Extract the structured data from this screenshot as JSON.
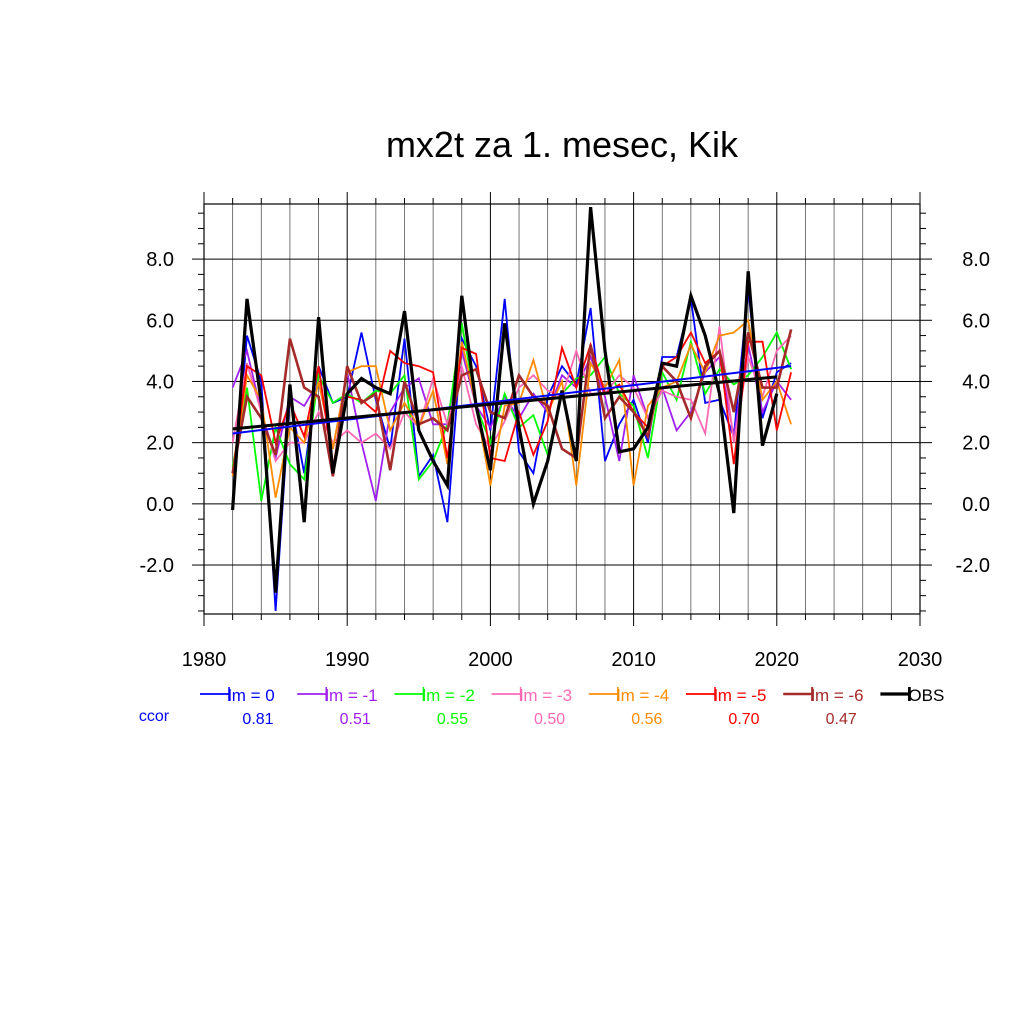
{
  "chart_data": {
    "type": "line",
    "title": "mx2t za 1. mesec, Kik",
    "xlabel": "",
    "ylabel": "",
    "xlim": [
      1980,
      2030
    ],
    "ylim": [
      -3.6,
      9.8
    ],
    "x_ticks": [
      "1980",
      "1990",
      "2000",
      "2010",
      "2020",
      "2030"
    ],
    "y_ticks": [
      "-2.0",
      "0.0",
      "2.0",
      "4.0",
      "6.0",
      "8.0"
    ],
    "y_tick_values": [
      -2,
      0,
      2,
      4,
      6,
      8
    ],
    "grid": true,
    "legend_position": "bottom",
    "ccor_label": "ccor",
    "x": [
      1982,
      1983,
      1984,
      1985,
      1986,
      1987,
      1988,
      1989,
      1990,
      1991,
      1992,
      1993,
      1994,
      1995,
      1996,
      1997,
      1998,
      1999,
      2000,
      2001,
      2002,
      2003,
      2004,
      2005,
      2006,
      2007,
      2008,
      2009,
      2010,
      2011,
      2012,
      2013,
      2014,
      2015,
      2016,
      2017,
      2018,
      2019,
      2020,
      2021
    ],
    "series": [
      {
        "name": "lm = 0",
        "color": "#0000ff",
        "ccor": "0.81",
        "width": 1.8,
        "values": [
          0.0,
          5.5,
          4.0,
          -3.5,
          3.5,
          1.0,
          4.5,
          3.3,
          3.5,
          5.6,
          3.4,
          1.8,
          5.4,
          0.9,
          1.6,
          -0.6,
          5.4,
          4.5,
          2.4,
          6.7,
          1.7,
          1.0,
          3.5,
          4.5,
          3.9,
          6.4,
          1.4,
          2.6,
          3.4,
          2.0,
          4.8,
          4.8,
          6.7,
          3.3,
          3.4,
          2.2,
          7.0,
          2.8,
          4.3,
          4.6
        ],
        "trend": [
          2.3,
          4.5
        ]
      },
      {
        "name": "lm = -1",
        "color": "#a020f0",
        "ccor": "0.51",
        "width": 1.8,
        "values": [
          3.8,
          5.0,
          3.0,
          1.5,
          3.5,
          3.2,
          4.0,
          1.8,
          4.3,
          2.0,
          0.1,
          3.0,
          3.8,
          4.1,
          2.6,
          2.6,
          5.0,
          3.2,
          2.5,
          3.5,
          2.8,
          3.6,
          3.0,
          4.2,
          3.8,
          4.8,
          3.5,
          1.4,
          4.2,
          2.8,
          3.8,
          2.4,
          3.0,
          4.3,
          4.8,
          2.2,
          5.2,
          3.0,
          4.0,
          3.4
        ],
        "trend": null
      },
      {
        "name": "lm = -2",
        "color": "#00ff00",
        "ccor": "0.55",
        "width": 1.8,
        "values": [
          1.2,
          3.8,
          0.1,
          2.5,
          1.3,
          0.8,
          4.2,
          3.3,
          3.6,
          3.3,
          3.7,
          3.6,
          4.2,
          0.8,
          1.4,
          2.6,
          5.9,
          3.2,
          2.0,
          3.6,
          2.5,
          2.9,
          1.6,
          3.6,
          4.1,
          4.2,
          4.8,
          3.6,
          3.2,
          1.5,
          4.3,
          3.4,
          5.3,
          3.6,
          4.4,
          3.9,
          4.2,
          4.8,
          5.6,
          4.4
        ],
        "trend": null
      },
      {
        "name": "lm = -3",
        "color": "#ff69b4",
        "ccor": "0.50",
        "width": 1.8,
        "values": [
          2.0,
          4.6,
          3.0,
          1.4,
          2.0,
          2.0,
          3.0,
          2.0,
          2.4,
          2.0,
          2.3,
          1.8,
          3.0,
          2.5,
          4.1,
          2.6,
          4.5,
          2.6,
          1.8,
          2.7,
          3.8,
          4.2,
          3.7,
          3.5,
          5.0,
          3.6,
          3.6,
          4.2,
          3.8,
          2.8,
          3.7,
          3.5,
          3.4,
          2.3,
          5.8,
          2.0,
          4.8,
          3.5,
          5.0,
          5.5
        ],
        "trend": null
      },
      {
        "name": "lm = -4",
        "color": "#ff8c00",
        "ccor": "0.56",
        "width": 1.8,
        "values": [
          0.9,
          4.2,
          3.4,
          0.2,
          2.5,
          2.0,
          4.0,
          1.8,
          4.3,
          4.5,
          4.5,
          2.4,
          3.3,
          2.5,
          3.7,
          1.3,
          5.3,
          3.2,
          0.6,
          3.2,
          3.3,
          4.7,
          3.0,
          4.0,
          0.6,
          4.6,
          3.8,
          4.7,
          0.6,
          3.2,
          3.8,
          4.0,
          5.2,
          4.3,
          5.5,
          5.6,
          6.0,
          3.4,
          4.0,
          2.6
        ],
        "trend": null
      },
      {
        "name": "lm = -5",
        "color": "#ff0000",
        "ccor": "0.70",
        "width": 1.8,
        "values": [
          1.0,
          4.5,
          4.2,
          2.0,
          3.3,
          2.2,
          4.5,
          1.2,
          3.5,
          3.4,
          3.0,
          5.0,
          4.6,
          4.5,
          4.3,
          1.5,
          5.1,
          4.9,
          1.5,
          1.4,
          3.0,
          1.6,
          2.7,
          5.1,
          3.8,
          5.2,
          3.6,
          3.9,
          3.0,
          2.5,
          4.5,
          4.8,
          5.6,
          4.6,
          5.0,
          1.3,
          5.3,
          5.3,
          2.4,
          4.3
        ],
        "trend": null
      },
      {
        "name": "lm = -6",
        "color": "#a52a2a",
        "ccor": "0.47",
        "width": 2.6,
        "values": [
          1.0,
          3.5,
          2.8,
          1.6,
          5.4,
          3.8,
          3.5,
          0.9,
          4.5,
          3.3,
          3.6,
          1.1,
          4.0,
          2.6,
          2.8,
          2.4,
          4.2,
          4.4,
          3.0,
          2.8,
          4.2,
          3.5,
          3.2,
          1.8,
          1.5,
          5.2,
          2.8,
          3.5,
          3.0,
          2.2,
          4.5,
          4.0,
          2.8,
          4.5,
          5.0,
          3.0,
          5.6,
          3.8,
          3.8,
          5.7
        ],
        "trend": null
      },
      {
        "name": "OBS",
        "color": "#000000",
        "ccor": "",
        "width": 3.2,
        "values": [
          -0.2,
          6.7,
          3.3,
          -2.9,
          3.9,
          -0.6,
          6.1,
          1.0,
          3.6,
          4.1,
          3.8,
          3.6,
          6.3,
          2.4,
          1.4,
          0.6,
          6.8,
          3.2,
          1.1,
          5.9,
          2.5,
          0.0,
          1.4,
          3.7,
          1.4,
          9.7,
          5.0,
          1.7,
          1.8,
          2.5,
          4.6,
          4.5,
          6.8,
          5.5,
          3.6,
          -0.3,
          7.6,
          1.9,
          3.6,
          null
        ],
        "trend": [
          2.45,
          4.15
        ]
      }
    ]
  }
}
